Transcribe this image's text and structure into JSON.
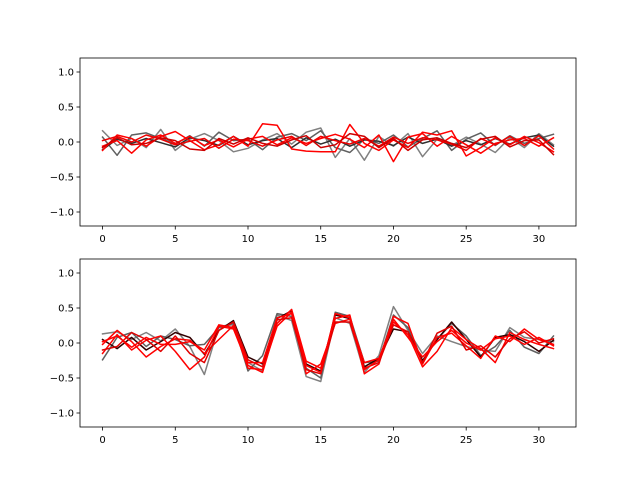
{
  "chart_data": [
    {
      "type": "line",
      "x": [
        0,
        1,
        2,
        3,
        4,
        5,
        6,
        7,
        8,
        9,
        10,
        11,
        12,
        13,
        14,
        15,
        16,
        17,
        18,
        19,
        20,
        21,
        22,
        23,
        24,
        25,
        26,
        27,
        28,
        29,
        30,
        31
      ],
      "xlim": [
        -1.55,
        32.55
      ],
      "ylim": [
        -1.2,
        1.2
      ],
      "xticks": [
        0,
        5,
        10,
        15,
        20,
        25,
        30
      ],
      "yticks": [
        -1.0,
        -0.5,
        0.0,
        0.5,
        1.0
      ],
      "xtick_labels": [
        "0",
        "5",
        "10",
        "15",
        "20",
        "25",
        "30"
      ],
      "ytick_labels": [
        "−1.0",
        "−0.5",
        "0.0",
        "0.5",
        "1.0"
      ],
      "series": [
        {
          "color": "#808080",
          "values": [
            0.16,
            -0.05,
            0.05,
            -0.08,
            0.18,
            -0.12,
            0.04,
            0.12,
            0.02,
            -0.14,
            -0.09,
            0.03,
            0.12,
            -0.03,
            0.14,
            0.2,
            -0.22,
            0.05,
            -0.26,
            0.08,
            -0.06,
            0.12,
            -0.21,
            0.04,
            -0.05,
            0.07,
            -0.03,
            -0.15,
            0.06,
            -0.08,
            0.12,
            -0.04
          ]
        },
        {
          "color": "#606060",
          "values": [
            0.07,
            -0.19,
            0.1,
            0.13,
            0.05,
            -0.03,
            0.09,
            -0.06,
            0.14,
            0.02,
            0.04,
            -0.11,
            0.07,
            0.12,
            0.02,
            0.16,
            -0.08,
            -0.15,
            0.04,
            -0.02,
            0.1,
            -0.07,
            0.05,
            0.16,
            -0.12,
            0.04,
            0.13,
            -0.05,
            0.09,
            -0.02,
            0.05,
            0.11
          ]
        },
        {
          "color": "#303030",
          "values": [
            -0.11,
            0.04,
            -0.02,
            0.05,
            -0.01,
            -0.07,
            0.06,
            0.02,
            -0.05,
            0.08,
            -0.04,
            0.02,
            0.05,
            -0.08,
            0.06,
            -0.03,
            0.04,
            -0.06,
            0.03,
            0.01,
            -0.05,
            0.07,
            -0.02,
            0.04,
            -0.06,
            0.02,
            -0.04,
            0.05,
            -0.03,
            0.06,
            0.1,
            -0.06
          ]
        },
        {
          "color": "#ff0000",
          "values": [
            -0.12,
            0.1,
            0.05,
            -0.06,
            0.08,
            0.15,
            0.02,
            -0.11,
            -0.04,
            0.08,
            -0.06,
            0.26,
            0.24,
            -0.1,
            -0.13,
            -0.14,
            -0.14,
            0.25,
            -0.02,
            -0.12,
            0.03,
            -0.08,
            0.14,
            0.1,
            0.16,
            -0.2,
            -0.08,
            0.06,
            -0.04,
            0.08,
            -0.01,
            -0.14
          ]
        },
        {
          "color": "#ff0000",
          "values": [
            -0.06,
            0.02,
            -0.16,
            0.03,
            0.1,
            -0.02,
            0.08,
            -0.05,
            0.03,
            -0.07,
            0.04,
            0.08,
            -0.04,
            0.06,
            -0.02,
            0.05,
            0.11,
            0.04,
            -0.08,
            0.1,
            -0.28,
            0.07,
            0.12,
            -0.06,
            0.08,
            -0.04,
            -0.16,
            -0.02,
            0.03,
            0.05,
            -0.06,
            0.06
          ]
        },
        {
          "color": "#ee0000",
          "values": [
            0.02,
            0.08,
            0.0,
            0.1,
            0.04,
            -0.04,
            0.01,
            0.05,
            -0.09,
            0.04,
            0.02,
            -0.06,
            0.03,
            0.08,
            -0.05,
            0.08,
            0.02,
            -0.03,
            0.05,
            -0.06,
            0.07,
            -0.02,
            0.06,
            0.03,
            -0.03,
            -0.12,
            0.05,
            -0.04,
            0.08,
            -0.05,
            0.09,
            -0.1
          ]
        },
        {
          "color": "#cc0000",
          "values": [
            -0.08,
            0.06,
            -0.04,
            -0.02,
            0.06,
            0.02,
            -0.1,
            -0.12,
            0.05,
            -0.03,
            0.06,
            -0.02,
            -0.06,
            0.03,
            0.09,
            -0.08,
            -0.04,
            0.12,
            0.08,
            -0.08,
            0.05,
            -0.12,
            0.03,
            0.06,
            -0.02,
            -0.08,
            0.04,
            0.08,
            -0.07,
            0.02,
            0.03,
            -0.18
          ]
        }
      ]
    },
    {
      "type": "line",
      "x": [
        0,
        1,
        2,
        3,
        4,
        5,
        6,
        7,
        8,
        9,
        10,
        11,
        12,
        13,
        14,
        15,
        16,
        17,
        18,
        19,
        20,
        21,
        22,
        23,
        24,
        25,
        26,
        27,
        28,
        29,
        30,
        31
      ],
      "xlim": [
        -1.55,
        32.55
      ],
      "ylim": [
        -1.2,
        1.2
      ],
      "xticks": [
        0,
        5,
        10,
        15,
        20,
        25,
        30
      ],
      "yticks": [
        -1.0,
        -0.5,
        0.0,
        0.5,
        1.0
      ],
      "xtick_labels": [
        "0",
        "5",
        "10",
        "15",
        "20",
        "25",
        "30"
      ],
      "ytick_labels": [
        "−1.0",
        "−0.5",
        "0.0",
        "0.5",
        "1.0"
      ],
      "series": [
        {
          "color": "#808080",
          "values": [
            0.13,
            0.16,
            0.05,
            0.15,
            0.03,
            0.2,
            -0.05,
            -0.45,
            0.24,
            0.26,
            -0.28,
            -0.4,
            0.4,
            0.32,
            -0.48,
            -0.55,
            0.36,
            0.28,
            -0.42,
            -0.18,
            0.52,
            0.18,
            -0.15,
            0.1,
            0.02,
            -0.05,
            -0.1,
            -0.12,
            0.22,
            0.08,
            0.05,
            0.02
          ]
        },
        {
          "color": "#606060",
          "values": [
            -0.24,
            0.08,
            0.15,
            -0.05,
            0.1,
            0.05,
            -0.04,
            -0.02,
            0.22,
            0.28,
            -0.4,
            -0.18,
            0.42,
            0.38,
            -0.36,
            -0.5,
            0.44,
            0.38,
            -0.28,
            -0.26,
            0.4,
            0.22,
            -0.26,
            0.05,
            0.28,
            0.1,
            -0.18,
            -0.05,
            0.18,
            -0.06,
            -0.15,
            0.1
          ]
        },
        {
          "color": "#300000",
          "values": [
            0.05,
            -0.08,
            0.08,
            -0.1,
            0.02,
            0.15,
            0.08,
            -0.16,
            0.18,
            0.32,
            -0.2,
            -0.3,
            0.35,
            0.46,
            -0.3,
            -0.4,
            0.4,
            0.35,
            -0.34,
            -0.22,
            0.2,
            0.16,
            -0.25,
            0.05,
            0.3,
            0.05,
            -0.2,
            0.08,
            0.12,
            0.02,
            -0.12,
            0.04
          ]
        },
        {
          "color": "#ff0000",
          "values": [
            -0.15,
            0.12,
            -0.1,
            0.04,
            0.1,
            -0.12,
            -0.38,
            -0.2,
            0.24,
            0.2,
            -0.32,
            -0.42,
            0.28,
            0.48,
            -0.26,
            -0.36,
            0.35,
            0.4,
            -0.44,
            -0.3,
            0.38,
            0.28,
            -0.3,
            0.08,
            0.14,
            -0.04,
            -0.22,
            0.1,
            0.02,
            0.2,
            0.05,
            -0.02
          ]
        },
        {
          "color": "#ff0000",
          "values": [
            -0.02,
            0.18,
            0.02,
            -0.2,
            -0.05,
            0.06,
            0.04,
            -0.15,
            0.05,
            0.25,
            -0.36,
            -0.38,
            0.24,
            0.44,
            -0.44,
            -0.3,
            0.28,
            0.34,
            -0.28,
            -0.22,
            0.3,
            0.12,
            -0.34,
            -0.12,
            0.22,
            0.05,
            -0.08,
            -0.28,
            0.15,
            0.05,
            -0.02,
            -0.08
          ]
        },
        {
          "color": "#e00000",
          "values": [
            -0.1,
            -0.05,
            0.15,
            0.05,
            -0.12,
            0.1,
            -0.15,
            -0.28,
            0.18,
            0.3,
            -0.24,
            -0.34,
            0.33,
            0.36,
            -0.38,
            -0.44,
            0.3,
            0.3,
            -0.36,
            -0.28,
            0.26,
            0.16,
            -0.28,
            0.14,
            0.24,
            -0.1,
            -0.04,
            -0.2,
            0.06,
            0.16,
            0.0,
            0.06
          ]
        },
        {
          "color": "#ff0000",
          "values": [
            0.02,
            0.1,
            -0.06,
            0.08,
            -0.02,
            -0.02,
            0.02,
            -0.1,
            0.26,
            0.22,
            -0.28,
            -0.28,
            0.36,
            0.42,
            -0.32,
            -0.42,
            0.42,
            0.36,
            -0.38,
            -0.24,
            0.34,
            0.08,
            -0.2,
            0.02,
            0.18,
            0.0,
            -0.1,
            0.06,
            0.1,
            -0.02,
            0.08,
            -0.04
          ]
        }
      ]
    }
  ]
}
